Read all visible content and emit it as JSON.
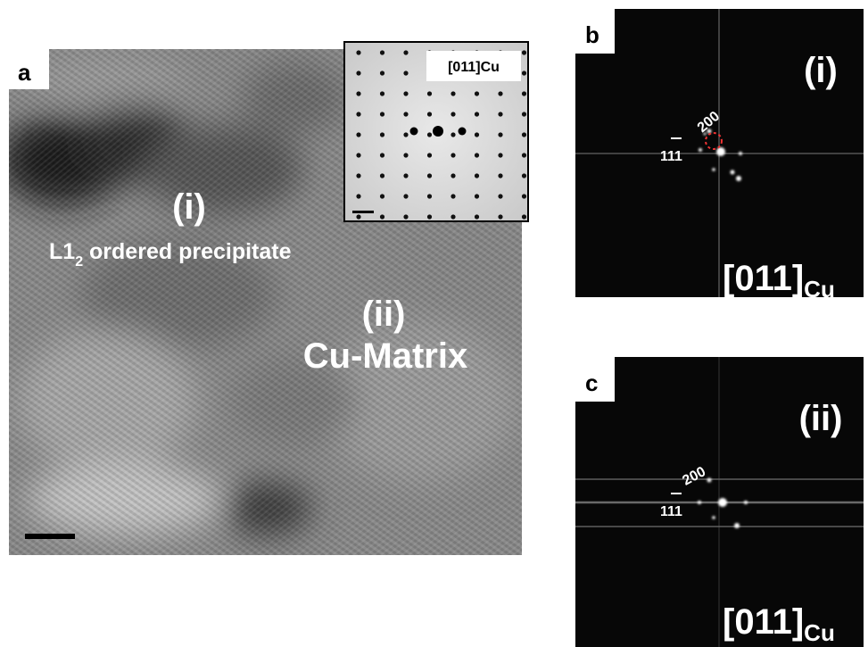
{
  "panel_a": {
    "label": "a",
    "region_i": "(i)",
    "precipitate": {
      "main": "L1",
      "sub": "2",
      "rest": " ordered precipitate"
    },
    "region_ii": "(ii)",
    "matrix": "Cu-Matrix",
    "inset": {
      "label": "[011]Cu"
    }
  },
  "panel_b": {
    "label": "b",
    "region": "(i)",
    "reflections": [
      "200",
      "111"
    ],
    "zone": {
      "main": "[011]",
      "sub": "Cu"
    }
  },
  "panel_c": {
    "label": "c",
    "region": "(ii)",
    "reflections": [
      "200",
      "111"
    ],
    "zone": {
      "main": "[011]",
      "sub": "Cu"
    }
  }
}
